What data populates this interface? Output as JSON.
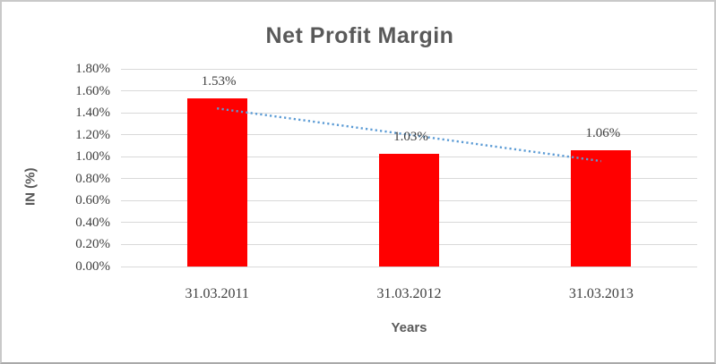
{
  "window": {
    "background": "#ffffff",
    "border_color": "#c9c9c9"
  },
  "chart_data": {
    "type": "bar",
    "title": "Net Profit Margin",
    "xlabel": "Years",
    "ylabel": "IN (%)",
    "categories": [
      "31.03.2011",
      "31.03.2012",
      "31.03.2013"
    ],
    "values": [
      1.53,
      1.03,
      1.06
    ],
    "data_labels": [
      "1.53%",
      "1.03%",
      "1.06%"
    ],
    "y_ticks": [
      "0.00%",
      "0.20%",
      "0.40%",
      "0.60%",
      "0.80%",
      "1.00%",
      "1.20%",
      "1.40%",
      "1.60%",
      "1.80%"
    ],
    "ylim": [
      0,
      1.8
    ],
    "grid": true,
    "legend": false,
    "bar_color": "#ff0000",
    "grid_color": "#d9d9d9",
    "text_color": "#3f3f3f",
    "title_color": "#595959",
    "trendline": {
      "type": "linear",
      "style": "dotted",
      "color": "#5b9bd5",
      "start_value": 1.44,
      "end_value": 0.96
    }
  }
}
